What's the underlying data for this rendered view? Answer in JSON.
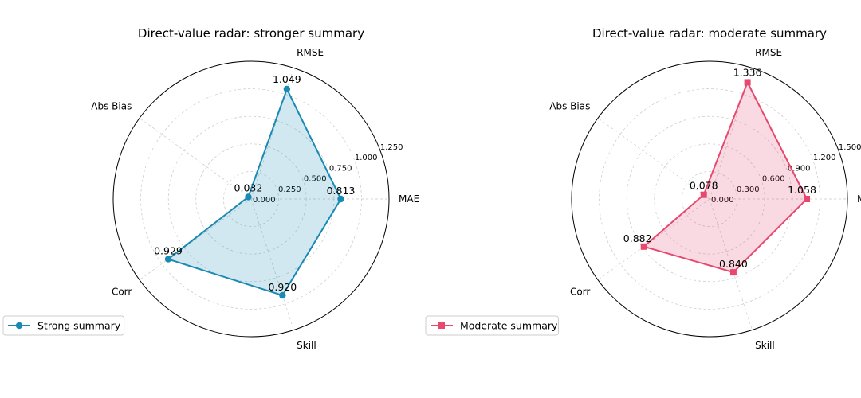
{
  "chart_data": [
    {
      "type": "radar",
      "title": "Direct-value radar: stronger summary",
      "axes": [
        "MAE",
        "RMSE",
        "Abs Bias",
        "Corr",
        "Skill"
      ],
      "rlim": [
        0,
        1.25
      ],
      "rticks": [
        "0.000",
        "0.250",
        "0.500",
        "0.750",
        "1.000",
        "1.250"
      ],
      "grid": true,
      "legend_position": "lower-left",
      "series": [
        {
          "name": "Strong summary",
          "values": [
            0.813,
            1.049,
            0.032,
            0.929,
            0.92
          ],
          "labels": [
            "0.813",
            "1.049",
            "0.032",
            "0.929",
            "0.920"
          ],
          "color": "#1a8ab4",
          "fill": "#1a8ab4",
          "marker": "circle"
        }
      ]
    },
    {
      "type": "radar",
      "title": "Direct-value radar: moderate summary",
      "axes": [
        "MAE",
        "RMSE",
        "Abs Bias",
        "Corr",
        "Skill"
      ],
      "rlim": [
        0,
        1.5
      ],
      "rticks": [
        "0.000",
        "0.300",
        "0.600",
        "0.900",
        "1.200",
        "1.500"
      ],
      "grid": true,
      "legend_position": "lower-left",
      "series": [
        {
          "name": "Moderate summary",
          "values": [
            1.058,
            1.336,
            0.078,
            0.882,
            0.84
          ],
          "labels": [
            "1.058",
            "1.336",
            "0.078",
            "0.882",
            "0.840"
          ],
          "color": "#e8486f",
          "fill": "#e8486f",
          "marker": "square"
        }
      ]
    }
  ]
}
